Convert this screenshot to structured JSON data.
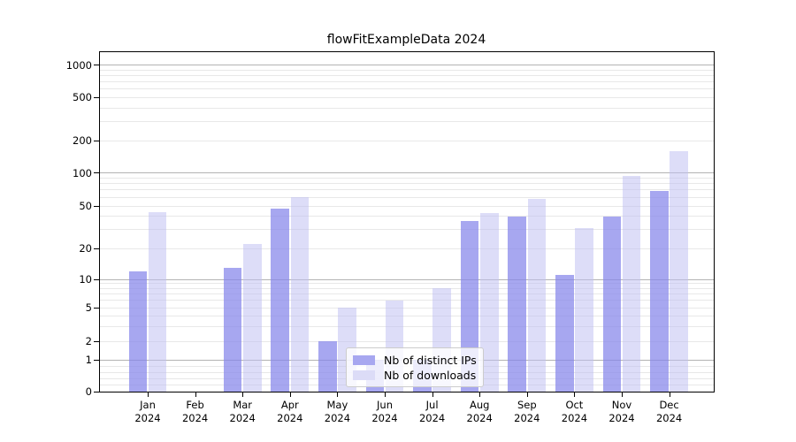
{
  "title": "flowFitExampleData 2024",
  "chart_data": {
    "type": "bar",
    "title": "flowFitExampleData 2024",
    "categories": [
      "Jan 2024",
      "Feb 2024",
      "Mar 2024",
      "Apr 2024",
      "May 2024",
      "Jun 2024",
      "Jul 2024",
      "Aug 2024",
      "Sep 2024",
      "Oct 2024",
      "Nov 2024",
      "Dec 2024"
    ],
    "series": [
      {
        "name": "Nb of distinct IPs",
        "values": [
          12,
          0,
          13,
          47,
          2,
          1,
          1,
          36,
          40,
          11,
          40,
          68
        ],
        "color": "#a7a7f0",
        "fill": "rgba(134,134,234,0.73)"
      },
      {
        "name": "Nb of downloads",
        "values": [
          44,
          0,
          22,
          60,
          5,
          6,
          8,
          43,
          58,
          31,
          93,
          160
        ],
        "color": "#dcdcf7",
        "fill": "rgba(190,190,242,0.52)"
      }
    ],
    "xlabel": "",
    "ylabel": "",
    "yscale": "symlog",
    "yticks": [
      0,
      1,
      2,
      5,
      10,
      20,
      50,
      100,
      200,
      500,
      1000
    ],
    "ylim": [
      0,
      1300
    ],
    "grid": true,
    "legend_position": "inside lower center"
  },
  "legend": {
    "items": [
      {
        "label": "Nb of distinct IPs",
        "color": "#a7a7f0"
      },
      {
        "label": "Nb of downloads",
        "color": "#dcdcf7"
      }
    ]
  },
  "colors": {
    "background": "#ffffff",
    "bar_dark": "#a7a7f0",
    "bar_light": "#dcdcf7",
    "grid_major": "#b3b3b3",
    "grid_minor": "#e8e8e8",
    "spine": "#000000"
  }
}
